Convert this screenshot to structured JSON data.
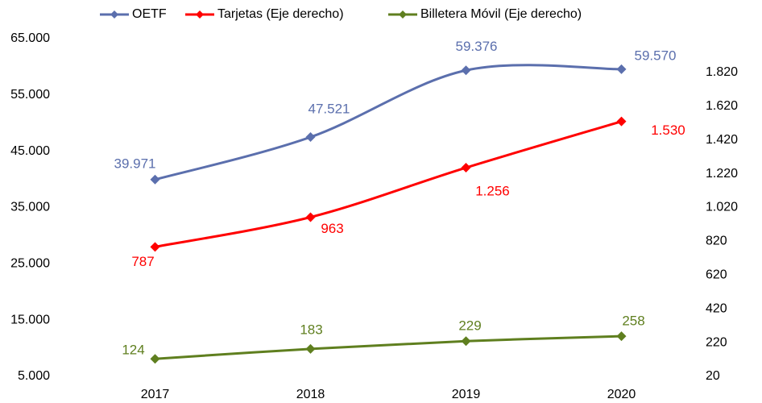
{
  "chart_data": {
    "type": "line",
    "categories": [
      "2017",
      "2018",
      "2019",
      "2020"
    ],
    "series": [
      {
        "name": "OETF",
        "color": "#5b6fad",
        "values": [
          39971,
          47521,
          59376,
          59570
        ],
        "value_labels": [
          "39.971",
          "47.521",
          "59.376",
          "59.570"
        ]
      },
      {
        "name": "Tarjetas  (Eje derecho)",
        "color": "#ff0000",
        "axis": "y2",
        "values": [
          787,
          963,
          1256,
          1530
        ],
        "value_labels": [
          "787",
          "963",
          "1.256",
          "1.530"
        ]
      },
      {
        "name": "Billetera Móvil  (Eje derecho)",
        "color": "#5f7f1f",
        "axis": "y2",
        "values": [
          124,
          183,
          229,
          258
        ],
        "value_labels": [
          "124",
          "183",
          "229",
          "258"
        ]
      }
    ],
    "ylim": [
      5000,
      65000
    ],
    "yticks": [
      {
        "value": 5000,
        "label": "5.000"
      },
      {
        "value": 15000,
        "label": "15.000"
      },
      {
        "value": 25000,
        "label": "25.000"
      },
      {
        "value": 35000,
        "label": "35.000"
      },
      {
        "value": 45000,
        "label": "45.000"
      },
      {
        "value": 55000,
        "label": "55.000"
      },
      {
        "value": 65000,
        "label": "65.000"
      }
    ],
    "y2lim": [
      20,
      2020
    ],
    "y2ticks": [
      20,
      220,
      420,
      620,
      820,
      {
        "value": 1020,
        "label": "1.020"
      },
      {
        "value": 1220,
        "label": "1.220"
      },
      {
        "value": 1420,
        "label": "1.420"
      },
      {
        "value": 1620,
        "label": "1.620"
      },
      {
        "value": 1820,
        "label": "1.820"
      }
    ],
    "legend": "top",
    "grid": false,
    "smooth": true
  }
}
